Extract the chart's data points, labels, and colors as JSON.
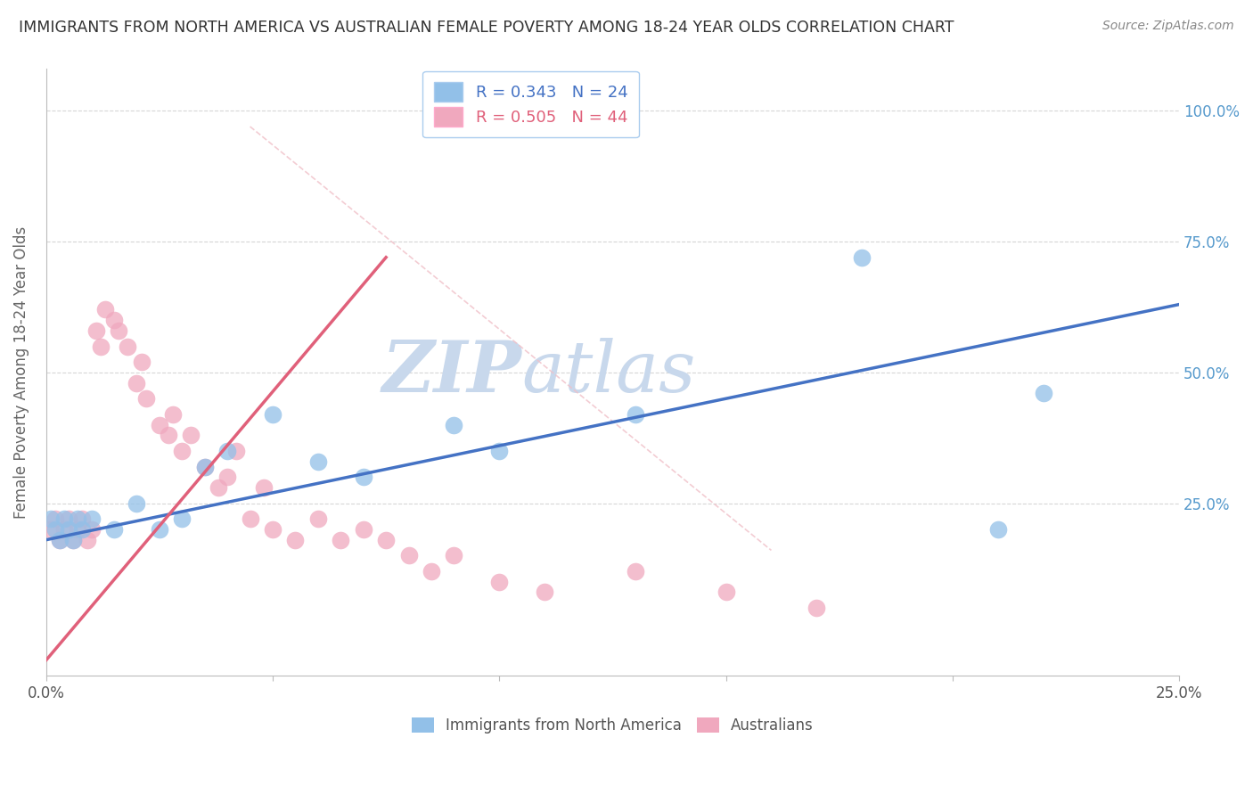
{
  "title": "IMMIGRANTS FROM NORTH AMERICA VS AUSTRALIAN FEMALE POVERTY AMONG 18-24 YEAR OLDS CORRELATION CHART",
  "source": "Source: ZipAtlas.com",
  "ylabel": "Female Poverty Among 18-24 Year Olds",
  "xlim": [
    0.0,
    0.25
  ],
  "ylim": [
    -0.08,
    1.08
  ],
  "blue_R": 0.343,
  "blue_N": 24,
  "pink_R": 0.505,
  "pink_N": 44,
  "blue_scatter_x": [
    0.001,
    0.002,
    0.003,
    0.004,
    0.005,
    0.006,
    0.007,
    0.008,
    0.01,
    0.015,
    0.02,
    0.025,
    0.03,
    0.035,
    0.04,
    0.05,
    0.06,
    0.07,
    0.09,
    0.1,
    0.13,
    0.18,
    0.21,
    0.22
  ],
  "blue_scatter_y": [
    0.22,
    0.2,
    0.18,
    0.22,
    0.2,
    0.18,
    0.22,
    0.2,
    0.22,
    0.2,
    0.25,
    0.2,
    0.22,
    0.32,
    0.35,
    0.42,
    0.33,
    0.3,
    0.4,
    0.35,
    0.42,
    0.72,
    0.2,
    0.46
  ],
  "pink_scatter_x": [
    0.001,
    0.002,
    0.003,
    0.004,
    0.005,
    0.006,
    0.007,
    0.008,
    0.009,
    0.01,
    0.011,
    0.012,
    0.013,
    0.015,
    0.016,
    0.018,
    0.02,
    0.021,
    0.022,
    0.025,
    0.027,
    0.028,
    0.03,
    0.032,
    0.035,
    0.038,
    0.04,
    0.042,
    0.045,
    0.048,
    0.05,
    0.055,
    0.06,
    0.065,
    0.07,
    0.075,
    0.08,
    0.085,
    0.09,
    0.1,
    0.11,
    0.13,
    0.15,
    0.17
  ],
  "pink_scatter_y": [
    0.2,
    0.22,
    0.18,
    0.2,
    0.22,
    0.18,
    0.2,
    0.22,
    0.18,
    0.2,
    0.58,
    0.55,
    0.62,
    0.6,
    0.58,
    0.55,
    0.48,
    0.52,
    0.45,
    0.4,
    0.38,
    0.42,
    0.35,
    0.38,
    0.32,
    0.28,
    0.3,
    0.35,
    0.22,
    0.28,
    0.2,
    0.18,
    0.22,
    0.18,
    0.2,
    0.18,
    0.15,
    0.12,
    0.15,
    0.1,
    0.08,
    0.12,
    0.08,
    0.05
  ],
  "blue_line_x": [
    0.0,
    0.25
  ],
  "blue_line_y": [
    0.18,
    0.63
  ],
  "pink_line_x": [
    0.0,
    0.075
  ],
  "pink_line_y": [
    -0.05,
    0.72
  ],
  "diag_line_x": [
    0.045,
    0.16
  ],
  "diag_line_y": [
    0.97,
    0.16
  ],
  "blue_color": "#92C0E8",
  "pink_color": "#F0A8BE",
  "blue_line_color": "#4472C4",
  "pink_line_color": "#E0607A",
  "diag_color": "#F0C0C8",
  "watermark_color": "#C8D8EC",
  "background_color": "#FFFFFF",
  "grid_color": "#CCCCCC"
}
